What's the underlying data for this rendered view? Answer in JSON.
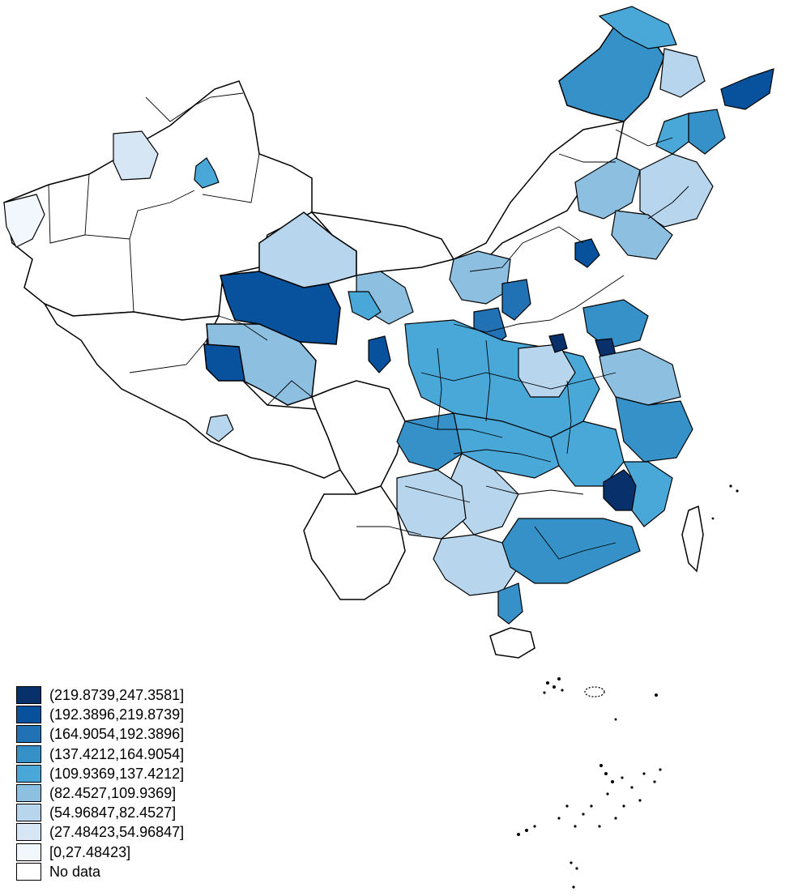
{
  "map": {
    "legend": [
      {
        "label": "(219.8739,247.3581]",
        "color": "#08306b"
      },
      {
        "label": "(192.3896,219.8739]",
        "color": "#08519c"
      },
      {
        "label": "(164.9054,192.3896]",
        "color": "#2171b5"
      },
      {
        "label": "(137.4212,164.9054]",
        "color": "#3591c7"
      },
      {
        "label": "(109.9369,137.4212]",
        "color": "#4aa8d8"
      },
      {
        "label": "(82.4527,109.9369]",
        "color": "#8dc0e0"
      },
      {
        "label": "(54.96847,82.4527]",
        "color": "#b7d5ec"
      },
      {
        "label": "(27.48423,54.96847]",
        "color": "#d6e6f5"
      },
      {
        "label": "[0,27.48423]",
        "color": "#f2f7fd"
      },
      {
        "label": "No data",
        "color": "#ffffff"
      }
    ],
    "colors": {
      "border": "#000000",
      "background": "#ffffff"
    }
  }
}
